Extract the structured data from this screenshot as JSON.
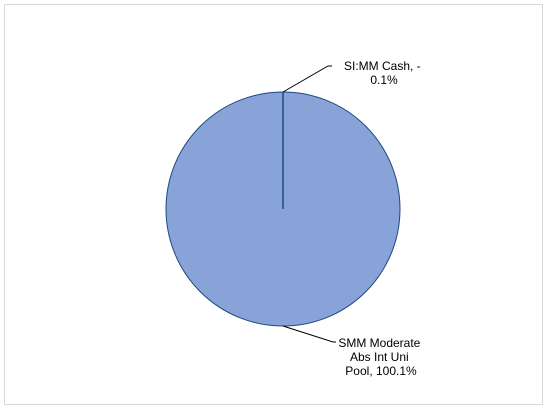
{
  "chart_data": {
    "type": "pie",
    "title": "",
    "slices": [
      {
        "name": "SI:MM Cash",
        "value": -0.1,
        "label_lines": [
          "SI:MM Cash, -",
          "0.1%"
        ]
      },
      {
        "name": "SMM Moderate Abs Int Uni Pool",
        "value": 100.1,
        "label_lines": [
          "SMM Moderate",
          "Abs Int Uni",
          "Pool, 100.1%"
        ]
      }
    ],
    "colors": {
      "slice_fill": "#87a3d8",
      "slice_stroke": "#1f497d",
      "leader_line": "#000000",
      "frame_border": "#d9d9d9"
    },
    "legend": "none"
  }
}
